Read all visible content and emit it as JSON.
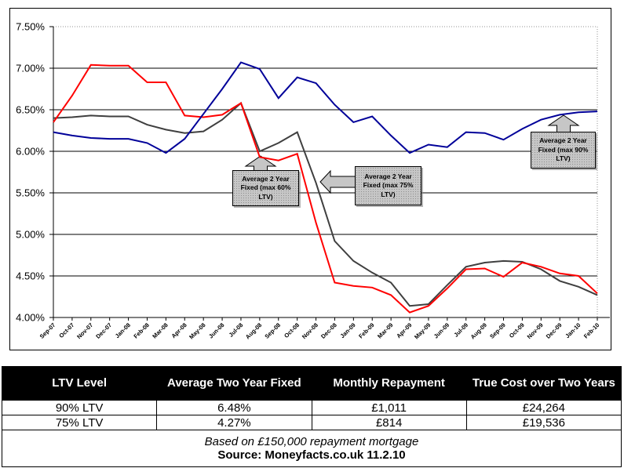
{
  "chart_data": {
    "type": "line",
    "title": "",
    "xlabel": "",
    "ylabel": "",
    "ylim": [
      4.0,
      7.5
    ],
    "y_tick_step": 0.5,
    "y_tick_format": "percent2",
    "grid": true,
    "legend_position": "none",
    "x": [
      "Sep-07",
      "Oct-07",
      "Nov-07",
      "Dec-07",
      "Jan-08",
      "Feb-08",
      "Mar-08",
      "Apr-08",
      "May-08",
      "Jun-08",
      "Jul-08",
      "Aug-08",
      "Sep-08",
      "Oct-08",
      "Nov-08",
      "Dec-08",
      "Jan-09",
      "Feb-09",
      "Mar-09",
      "Apr-09",
      "May-09",
      "Jun-09",
      "Jul-09",
      "Aug-09",
      "Sep-09",
      "Oct-09",
      "Nov-09",
      "Dec-09",
      "Jan-10",
      "Feb-10"
    ],
    "series": [
      {
        "name": "Average 2 Year Fixed (max 75% LTV)",
        "color": "#3f3f3f",
        "values": [
          6.4,
          6.41,
          6.43,
          6.42,
          6.42,
          6.32,
          6.26,
          6.22,
          6.24,
          6.38,
          6.58,
          6.0,
          6.1,
          6.23,
          5.62,
          4.92,
          4.68,
          4.54,
          4.42,
          4.14,
          4.16,
          4.39,
          4.61,
          4.66,
          4.68,
          4.67,
          4.58,
          4.44,
          4.37,
          4.27
        ]
      },
      {
        "name": "Average 2 Year Fixed (max 60% LTV)",
        "color": "#ff0000",
        "values": [
          6.35,
          6.67,
          7.04,
          7.03,
          7.03,
          6.83,
          6.83,
          6.43,
          6.41,
          6.44,
          6.58,
          5.93,
          5.89,
          5.97,
          5.14,
          4.42,
          4.38,
          4.36,
          4.27,
          4.06,
          4.14,
          4.35,
          4.58,
          4.59,
          4.49,
          4.66,
          4.61,
          4.53,
          4.5,
          4.29
        ]
      },
      {
        "name": "Average 2 Year Fixed (max 90% LTV)",
        "color": "#000099",
        "values": [
          6.23,
          6.19,
          6.16,
          6.15,
          6.15,
          6.1,
          5.98,
          6.15,
          6.45,
          6.75,
          7.07,
          6.99,
          6.64,
          6.89,
          6.82,
          6.56,
          6.35,
          6.42,
          6.19,
          5.98,
          6.08,
          6.05,
          6.23,
          6.22,
          6.14,
          6.27,
          6.38,
          6.44,
          6.47,
          6.48
        ]
      }
    ],
    "annotations": [
      {
        "label": "Average 2 Year Fixed (max 60% LTV)",
        "arrow": "up"
      },
      {
        "label": "Average 2 Year Fixed (max 75% LTV)",
        "arrow": "left"
      },
      {
        "label": "Average 2 Year Fixed (max 90% LTV)",
        "arrow": "up"
      }
    ]
  },
  "table": {
    "headers": [
      "LTV Level",
      "Average Two Year Fixed",
      "Monthly Repayment",
      "True Cost over Two Years"
    ],
    "rows": [
      [
        "90% LTV",
        "6.48%",
        "£1,011",
        "£24,264"
      ],
      [
        "75% LTV",
        "4.27%",
        "£814",
        "£19,536"
      ]
    ],
    "footnote": "Based on £150,000 repayment mortgage",
    "source": "Source: Moneyfacts.co.uk 11.2.10"
  }
}
